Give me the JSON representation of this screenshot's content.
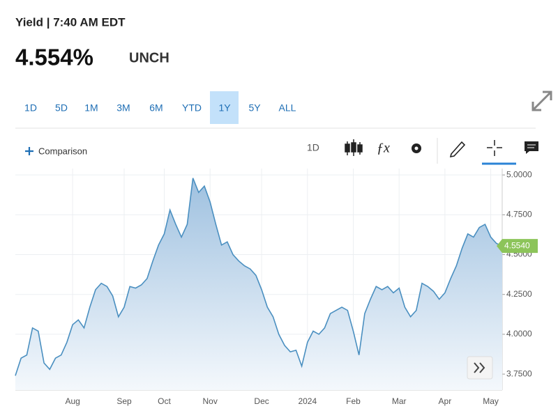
{
  "header": {
    "label": "Yield | 7:40 AM EDT",
    "price": "4.554%",
    "change": "UNCH"
  },
  "ranges": {
    "items": [
      "1D",
      "5D",
      "1M",
      "3M",
      "6M",
      "YTD",
      "1Y",
      "5Y",
      "ALL"
    ],
    "active": 6
  },
  "toolbar": {
    "comparison": "Comparison",
    "interval": "1D"
  },
  "chart_data": {
    "type": "area",
    "color": "#4a8fc0",
    "grid": true,
    "categories": [
      null,
      null,
      null,
      null,
      null,
      null,
      null,
      null,
      null,
      null,
      "Aug",
      null,
      null,
      null,
      null,
      null,
      null,
      null,
      null,
      "Sep",
      null,
      null,
      null,
      null,
      null,
      null,
      "Oct",
      null,
      null,
      null,
      null,
      null,
      null,
      null,
      "Nov",
      null,
      null,
      null,
      null,
      null,
      null,
      null,
      null,
      "Dec",
      null,
      null,
      null,
      null,
      null,
      null,
      null,
      "2024",
      null,
      null,
      null,
      null,
      null,
      null,
      null,
      "Feb",
      null,
      null,
      null,
      null,
      null,
      null,
      null,
      "Mar",
      null,
      null,
      null,
      null,
      null,
      null,
      null,
      "Apr",
      null,
      null,
      null,
      null,
      null,
      null,
      null,
      "May",
      null,
      null
    ],
    "values": [
      3.74,
      3.85,
      3.87,
      4.04,
      4.02,
      3.82,
      3.78,
      3.85,
      3.87,
      3.95,
      4.06,
      4.09,
      4.04,
      4.17,
      4.28,
      4.32,
      4.3,
      4.24,
      4.11,
      4.17,
      4.3,
      4.29,
      4.31,
      4.35,
      4.46,
      4.56,
      4.63,
      4.78,
      4.69,
      4.61,
      4.69,
      4.98,
      4.89,
      4.93,
      4.83,
      4.69,
      4.56,
      4.58,
      4.5,
      4.46,
      4.43,
      4.41,
      4.37,
      4.28,
      4.17,
      4.11,
      4.0,
      3.93,
      3.89,
      3.9,
      3.8,
      3.95,
      4.02,
      4.0,
      4.04,
      4.13,
      4.15,
      4.17,
      4.15,
      4.02,
      3.87,
      4.13,
      4.22,
      4.3,
      4.28,
      4.3,
      4.26,
      4.29,
      4.17,
      4.11,
      4.15,
      4.32,
      4.3,
      4.27,
      4.22,
      4.26,
      4.35,
      4.43,
      4.54,
      4.63,
      4.61,
      4.67,
      4.69,
      4.61,
      4.57,
      4.554
    ],
    "value_labels": [
      null,
      null,
      null,
      null,
      null,
      null,
      null,
      null,
      null,
      null,
      null,
      null,
      null,
      null,
      null,
      null,
      null,
      null,
      null,
      null,
      null,
      null,
      null,
      null,
      null,
      null,
      null,
      null,
      null,
      null,
      null,
      null,
      null,
      null,
      null,
      null,
      null,
      null,
      null,
      null,
      null,
      null,
      null,
      null,
      null,
      null,
      null,
      null,
      null,
      null,
      null,
      null,
      null,
      null,
      null,
      null,
      null,
      null,
      null,
      null,
      null,
      null,
      null,
      null,
      null,
      null,
      null,
      null,
      null,
      null,
      null,
      null,
      null,
      null,
      null,
      null,
      null,
      null,
      null,
      null,
      null,
      null,
      null,
      null,
      null,
      "4.5540"
    ],
    "ylim": [
      3.65,
      5.04
    ],
    "yticks": [
      {
        "value": 3.75,
        "label": "3.7500"
      },
      {
        "value": 4,
        "label": "4.0000"
      },
      {
        "value": 4.25,
        "label": "4.2500"
      },
      {
        "value": 4.5,
        "label": "4.5000"
      },
      {
        "value": 4.75,
        "label": "4.7500"
      },
      {
        "value": 5,
        "label": "5.0000"
      }
    ]
  }
}
